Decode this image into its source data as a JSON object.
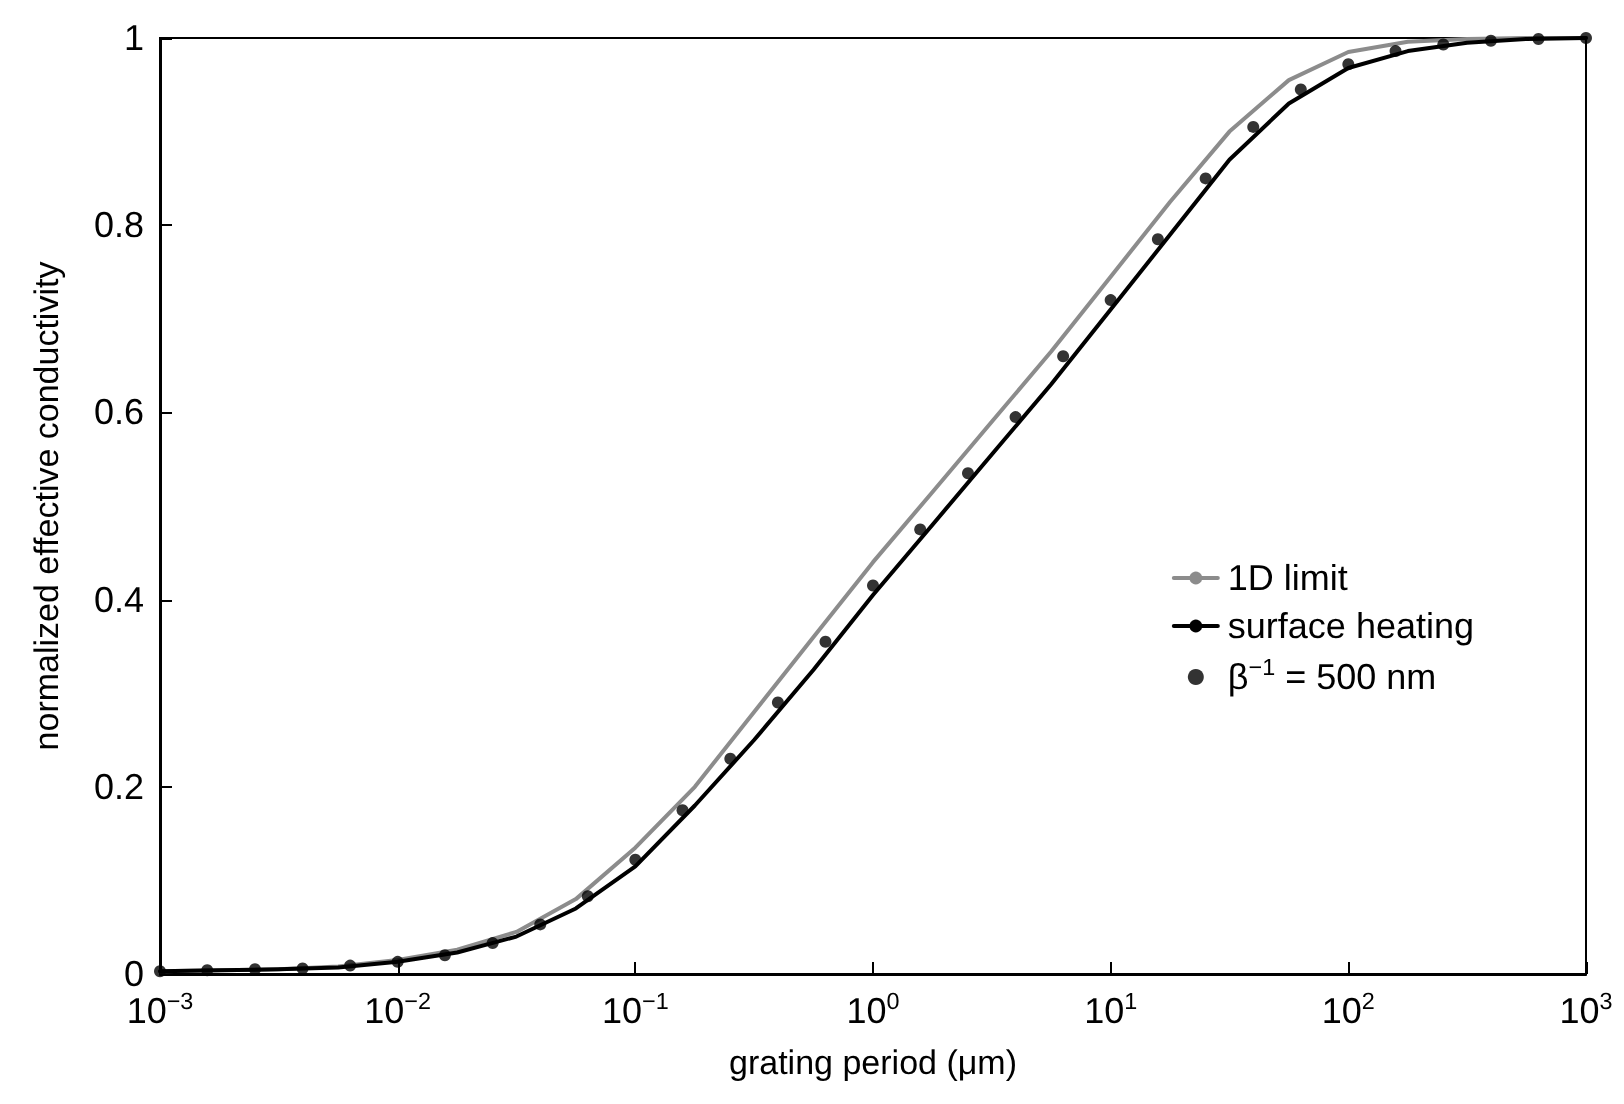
{
  "chart_data": {
    "type": "line",
    "xlabel": "grating period (μm)",
    "ylabel": "normalized effective conductivity",
    "log": "x",
    "xlim": [
      0.001,
      1000
    ],
    "xticks": [
      {
        "value": 0.001,
        "label": "10$^{−3}$"
      },
      {
        "value": 0.01,
        "label": "10$^{−2}$"
      },
      {
        "value": 0.1,
        "label": "10$^{−1}$"
      },
      {
        "value": 1,
        "label": "10$^{0}$"
      },
      {
        "value": 10,
        "label": "10$^{1}$"
      },
      {
        "value": 100,
        "label": "10$^{2}$"
      },
      {
        "value": 1000,
        "label": "10$^{3}$"
      }
    ],
    "ylim": [
      0,
      1
    ],
    "yticks": [
      0,
      0.2,
      0.4,
      0.6,
      0.8,
      1
    ],
    "grid": false,
    "legend": "right",
    "line_style": "solid",
    "series": [
      {
        "name": "1D limit",
        "marker": "none",
        "color": "#8c8c8c",
        "x": [
          0.001,
          0.00178,
          0.00316,
          0.00562,
          0.01,
          0.0178,
          0.0316,
          0.0562,
          0.1,
          0.178,
          0.316,
          0.562,
          1,
          1.78,
          3.16,
          5.62,
          10,
          17.8,
          31.6,
          56.2,
          100,
          178,
          316,
          562,
          1000
        ],
        "values": [
          0.003,
          0.004,
          0.005,
          0.008,
          0.015,
          0.026,
          0.045,
          0.08,
          0.135,
          0.2,
          0.28,
          0.36,
          0.44,
          0.515,
          0.59,
          0.665,
          0.745,
          0.825,
          0.9,
          0.955,
          0.985,
          0.996,
          0.999,
          1,
          1
        ]
      },
      {
        "name": "surface heating",
        "marker": "none",
        "color": "#000000",
        "x": [
          0.001,
          0.00178,
          0.00316,
          0.00562,
          0.01,
          0.0178,
          0.0316,
          0.0562,
          0.1,
          0.178,
          0.316,
          0.562,
          1,
          1.78,
          3.16,
          5.62,
          10,
          17.8,
          31.6,
          56.2,
          100,
          178,
          316,
          562,
          1000
        ],
        "values": [
          0.003,
          0.004,
          0.005,
          0.007,
          0.013,
          0.023,
          0.04,
          0.07,
          0.115,
          0.18,
          0.25,
          0.325,
          0.405,
          0.48,
          0.555,
          0.63,
          0.71,
          0.79,
          0.87,
          0.93,
          0.968,
          0.986,
          0.995,
          0.999,
          1
        ]
      },
      {
        "name": "β$^{−1}$ = 500 nm",
        "type": "scatter",
        "marker": "circle",
        "color": "#000000",
        "x": [
          0.001,
          0.00158,
          0.00251,
          0.00398,
          0.00631,
          0.01,
          0.0158,
          0.0251,
          0.0398,
          0.0631,
          0.1,
          0.158,
          0.251,
          0.398,
          0.631,
          1,
          1.58,
          2.51,
          3.98,
          6.31,
          10,
          15.8,
          25.1,
          39.8,
          63.1,
          100,
          158,
          251,
          398,
          631,
          1000
        ],
        "values": [
          0.003,
          0.004,
          0.005,
          0.006,
          0.009,
          0.013,
          0.02,
          0.033,
          0.053,
          0.083,
          0.122,
          0.175,
          0.23,
          0.29,
          0.355,
          0.415,
          0.475,
          0.535,
          0.595,
          0.66,
          0.72,
          0.785,
          0.85,
          0.905,
          0.945,
          0.972,
          0.986,
          0.993,
          0.997,
          0.999,
          1
        ]
      }
    ]
  }
}
